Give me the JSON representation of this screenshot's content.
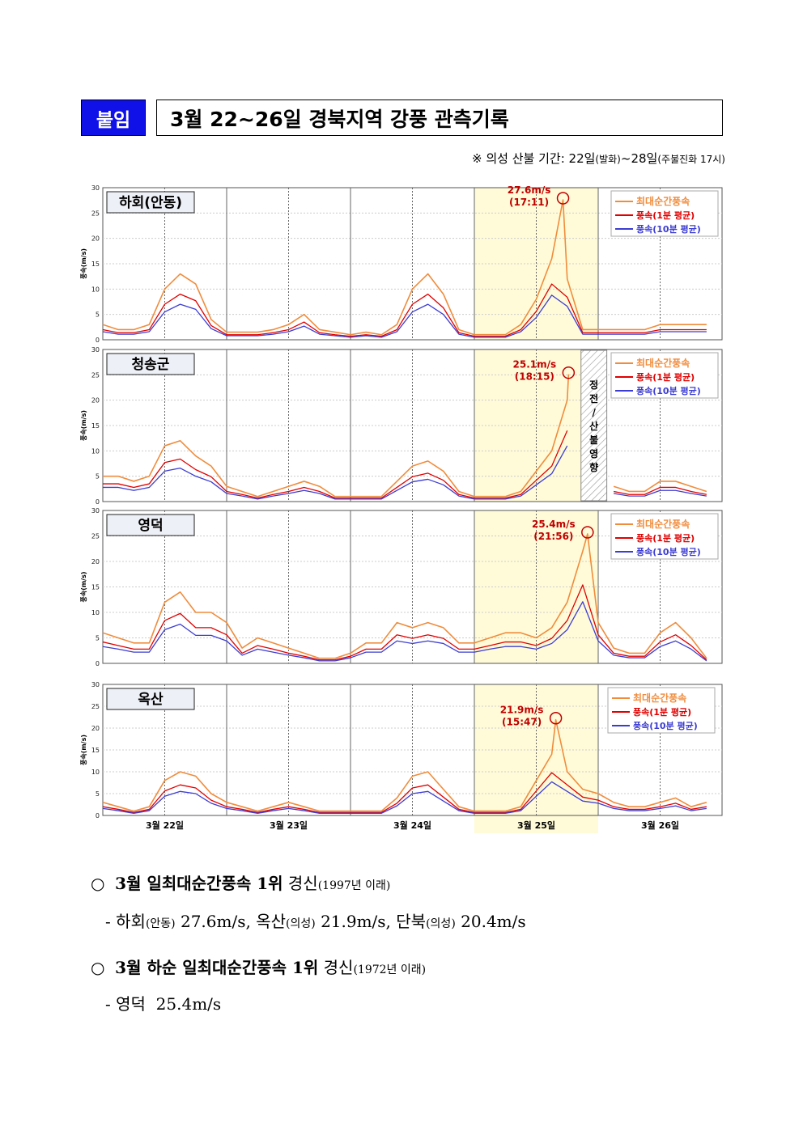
{
  "header": {
    "tag": "붙임",
    "title": "3월 22~26일 경북지역 강풍 관측기록",
    "note_main": "※ 의성 산불 기간: 22일",
    "note_paren1": "(발화)",
    "note_mid": "~28일",
    "note_paren2": "(주불진화 17시)"
  },
  "chart_data": {
    "type": "line",
    "ylabel": "풍속(m/s)",
    "ylim": [
      0,
      30
    ],
    "yticks": [
      0,
      5,
      10,
      15,
      20,
      25,
      30
    ],
    "xticks": [
      "3월 22일",
      "3월 23일",
      "3월 24일",
      "3월 25일",
      "3월 26일"
    ],
    "grid": true,
    "legend_position": "top-right",
    "legend": [
      "최대순간풍속",
      "풍속(1분 평균)",
      "풍속(10분 평균)"
    ],
    "colors": {
      "gust": "#f08c3c",
      "avg1": "#e00000",
      "avg10": "#3c3cd2",
      "highlight": "#fffbd8",
      "annotation": "#c00000"
    },
    "highlight_day": "3월 25일",
    "x": [
      "3/22 00:00",
      "3/22 03:00",
      "3/22 06:00",
      "3/22 09:00",
      "3/22 12:00",
      "3/22 15:00",
      "3/22 18:00",
      "3/22 21:00",
      "3/23 00:00",
      "3/23 03:00",
      "3/23 06:00",
      "3/23 09:00",
      "3/23 12:00",
      "3/23 15:00",
      "3/23 18:00",
      "3/23 21:00",
      "3/24 00:00",
      "3/24 03:00",
      "3/24 06:00",
      "3/24 09:00",
      "3/24 12:00",
      "3/24 15:00",
      "3/24 18:00",
      "3/24 21:00",
      "3/25 00:00",
      "3/25 03:00",
      "3/25 06:00",
      "3/25 09:00",
      "3/25 12:00",
      "3/25 15:00",
      "3/25 18:00",
      "3/25 21:00",
      "3/26 00:00",
      "3/26 03:00",
      "3/26 06:00",
      "3/26 09:00",
      "3/26 12:00",
      "3/26 15:00",
      "3/26 18:00",
      "3/26 21:00"
    ],
    "panels": [
      {
        "station": "하회(안동)",
        "peak": {
          "label": "27.6m/s",
          "time_label": "(17:11)",
          "time": "3/25 17:11",
          "value": 27.6
        },
        "series": [
          {
            "name": "최대순간풍속",
            "values": [
              3,
              2,
              2,
              3,
              10,
              13,
              11,
              4,
              1.5,
              1.5,
              1.5,
              2,
              3,
              5,
              2,
              1.5,
              1,
              1.5,
              1,
              3,
              10,
              13,
              9,
              2,
              1,
              1,
              1,
              3,
              8,
              16,
              12,
              2,
              2,
              2,
              2,
              2,
              3,
              3,
              3,
              3
            ]
          },
          {
            "name": "풍속(1분 평균)",
            "values": [
              2,
              1.4,
              1.4,
              2,
              7,
              9,
              7.7,
              2.8,
              1,
              1,
              1,
              1.4,
              2,
              3.5,
              1.4,
              1,
              0.7,
              1,
              0.7,
              2,
              7,
              9,
              6.3,
              1.4,
              0.7,
              0.7,
              0.7,
              2,
              5.6,
              11,
              8.4,
              1.4,
              1.4,
              1.4,
              1.4,
              1.4,
              2,
              2,
              2,
              2
            ]
          },
          {
            "name": "풍속(10분 평균)",
            "values": [
              1.6,
              1.1,
              1.1,
              1.6,
              5.5,
              7,
              6,
              2.2,
              0.8,
              0.8,
              0.8,
              1.1,
              1.6,
              2.7,
              1.1,
              0.8,
              0.5,
              0.8,
              0.5,
              1.6,
              5.5,
              7,
              5,
              1.1,
              0.5,
              0.5,
              0.5,
              1.6,
              4.4,
              8.8,
              6.6,
              1.1,
              1.1,
              1.1,
              1.1,
              1.1,
              1.6,
              1.6,
              1.6,
              1.6
            ]
          }
        ]
      },
      {
        "station": "청송군",
        "peak": {
          "label": "25.1m/s",
          "time_label": "(18:15)",
          "time": "3/25 18:15",
          "value": 25.1
        },
        "outage": {
          "label": "정전/산불영향",
          "from": "3/25 20:40",
          "to": "3/26 01:40"
        },
        "series": [
          {
            "name": "최대순간풍속",
            "values": [
              5,
              5,
              4,
              5,
              11,
              12,
              9,
              7,
              3,
              2,
              1,
              2,
              3,
              4,
              3,
              1,
              1,
              1,
              1,
              4,
              7,
              8,
              6,
              2,
              1,
              1,
              1,
              2,
              6,
              10,
              20,
              null,
              null,
              3,
              2,
              2,
              4,
              4,
              3,
              2
            ]
          },
          {
            "name": "풍속(1분 평균)",
            "values": [
              3.5,
              3.5,
              2.8,
              3.5,
              7.7,
              8.4,
              6.3,
              4.9,
              2,
              1.4,
              0.7,
              1.4,
              2,
              2.8,
              2,
              0.7,
              0.7,
              0.7,
              0.7,
              2.8,
              4.9,
              5.6,
              4.2,
              1.4,
              0.7,
              0.7,
              0.7,
              1.4,
              4.2,
              7,
              14,
              null,
              null,
              2,
              1.4,
              1.4,
              2.8,
              2.8,
              2,
              1.4
            ]
          },
          {
            "name": "풍속(10분 평균)",
            "values": [
              2.8,
              2.8,
              2.2,
              2.8,
              6,
              6.6,
              5,
              3.9,
              1.6,
              1.1,
              0.5,
              1.1,
              1.6,
              2.2,
              1.6,
              0.5,
              0.5,
              0.5,
              0.5,
              2.2,
              3.9,
              4.4,
              3.3,
              1.1,
              0.5,
              0.5,
              0.5,
              1.1,
              3.3,
              5.5,
              11,
              null,
              null,
              1.6,
              1.1,
              1.1,
              2.2,
              2.2,
              1.6,
              1.1
            ]
          }
        ]
      },
      {
        "station": "영덕",
        "peak": {
          "label": "25.4m/s",
          "time_label": "(21:56)",
          "time": "3/25 21:56",
          "value": 25.4
        },
        "series": [
          {
            "name": "최대순간풍속",
            "values": [
              6,
              5,
              4,
              4,
              12,
              14,
              10,
              10,
              8,
              3,
              5,
              4,
              3,
              2,
              1,
              1,
              2,
              4,
              4,
              8,
              7,
              8,
              7,
              4,
              4,
              5,
              6,
              6,
              5,
              7,
              12,
              22,
              8,
              3,
              2,
              2,
              6,
              8,
              5,
              1
            ]
          },
          {
            "name": "풍속(1분 평균)",
            "values": [
              4.2,
              3.5,
              2.8,
              2.8,
              8.4,
              9.8,
              7,
              7,
              5.6,
              2,
              3.5,
              2.8,
              2,
              1.4,
              0.7,
              0.7,
              1.4,
              2.8,
              2.8,
              5.6,
              4.9,
              5.6,
              4.9,
              2.8,
              2.8,
              3.5,
              4.2,
              4.2,
              3.5,
              4.9,
              8.4,
              15.4,
              5.6,
              2,
              1.4,
              1.4,
              4.2,
              5.6,
              3.5,
              0.7
            ]
          },
          {
            "name": "풍속(10분 평균)",
            "values": [
              3.3,
              2.8,
              2.2,
              2.2,
              6.6,
              7.7,
              5.5,
              5.5,
              4.4,
              1.6,
              2.8,
              2.2,
              1.6,
              1.1,
              0.5,
              0.5,
              1.1,
              2.2,
              2.2,
              4.4,
              3.9,
              4.4,
              3.9,
              2.2,
              2.2,
              2.8,
              3.3,
              3.3,
              2.8,
              3.9,
              6.6,
              12.1,
              4.4,
              1.6,
              1.1,
              1.1,
              3.3,
              4.4,
              2.8,
              0.5
            ]
          }
        ]
      },
      {
        "station": "옥산",
        "peak": {
          "label": "21.9m/s",
          "time_label": "(15:47)",
          "time": "3/25 15:47",
          "value": 21.9
        },
        "series": [
          {
            "name": "최대순간풍속",
            "values": [
              3,
              2,
              1,
              2,
              8,
              10,
              9,
              5,
              3,
              2,
              1,
              2,
              3,
              2,
              1,
              1,
              1,
              1,
              1,
              4,
              9,
              10,
              6,
              2,
              1,
              1,
              1,
              2,
              8,
              14,
              10,
              6,
              5,
              3,
              2,
              2,
              3,
              4,
              2,
              3
            ]
          },
          {
            "name": "풍속(1분 평균)",
            "values": [
              2,
              1.4,
              0.7,
              1.4,
              5.6,
              7,
              6.3,
              3.5,
              2,
              1.4,
              0.7,
              1.4,
              2,
              1.4,
              0.7,
              0.7,
              0.7,
              0.7,
              0.7,
              2.8,
              6.3,
              7,
              4.2,
              1.4,
              0.7,
              0.7,
              0.7,
              1.4,
              5.6,
              9.8,
              7,
              4.2,
              3.5,
              2,
              1.4,
              1.4,
              2,
              2.8,
              1.4,
              2
            ]
          },
          {
            "name": "풍속(10분 평균)",
            "values": [
              1.6,
              1.1,
              0.5,
              1.1,
              4.4,
              5.5,
              5,
              2.8,
              1.6,
              1.1,
              0.5,
              1.1,
              1.6,
              1.1,
              0.5,
              0.5,
              0.5,
              0.5,
              0.5,
              2.2,
              5,
              5.5,
              3.3,
              1.1,
              0.5,
              0.5,
              0.5,
              1.1,
              4.4,
              7.7,
              5.5,
              3.3,
              2.8,
              1.6,
              1.1,
              1.1,
              1.6,
              2.2,
              1.1,
              1.6
            ]
          }
        ]
      }
    ]
  },
  "bullets": [
    {
      "marker": "○",
      "bold": "3월 일최대순간풍속 1위",
      "text": "경신",
      "paren": "(1997년 이래)"
    },
    {
      "marker": "○",
      "bold": "3월 하순 일최대순간풍속 1위",
      "text": "경신",
      "paren": "(1972년 이래)"
    }
  ],
  "sub_lines": {
    "line1": [
      {
        "name": "하회",
        "paren": "(안동)",
        "value": "27.6m/s,"
      },
      {
        "name": "옥산",
        "paren": "(의성)",
        "value": "21.9m/s,"
      },
      {
        "name": "단북",
        "paren": "(의성)",
        "value": "20.4m/s"
      }
    ],
    "line2": {
      "name": "영덕",
      "value": "25.4m/s"
    }
  }
}
